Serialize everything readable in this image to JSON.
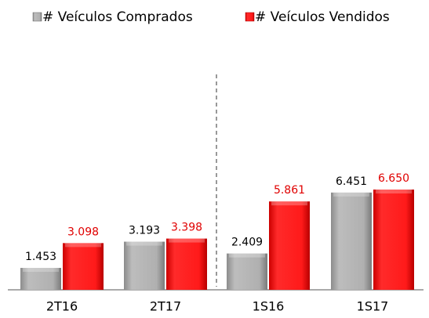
{
  "chart_data": {
    "type": "bar",
    "categories": [
      "2T16",
      "2T17",
      "1S16",
      "1S17"
    ],
    "series": [
      {
        "name": "# Veículos Comprados",
        "color": "#a6a6a6",
        "values": [
          1453,
          3193,
          2409,
          6451
        ],
        "value_labels": [
          "1.453",
          "3.193",
          "2.409",
          "6.451"
        ]
      },
      {
        "name": "# Veículos Vendidos",
        "color": "#ff1a1a",
        "values": [
          3098,
          3398,
          5861,
          6650
        ],
        "value_labels": [
          "3.098",
          "3.398",
          "5.861",
          "6.650"
        ]
      }
    ]
  }
}
